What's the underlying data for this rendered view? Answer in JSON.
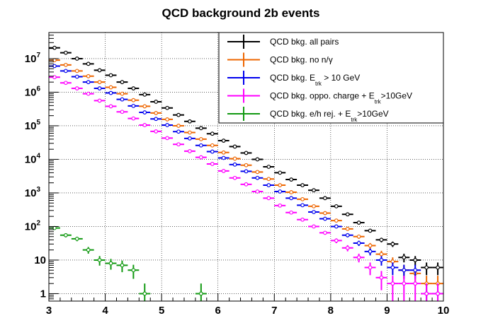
{
  "chart_data": {
    "type": "scatter",
    "title": "QCD background 2b events",
    "xlabel": "",
    "ylabel": "",
    "x_range": [
      3,
      10
    ],
    "y_range": [
      0.6,
      60000000
    ],
    "y_scale": "log",
    "grid": true,
    "legend_position": "top-right",
    "x_tick_labels": [
      "3",
      "4",
      "5",
      "6",
      "7",
      "8",
      "9",
      "10"
    ],
    "y_tick_labels": [
      {
        "value": 1,
        "base": "1",
        "exp": ""
      },
      {
        "value": 10,
        "base": "10",
        "exp": ""
      },
      {
        "value": 100,
        "base": "10",
        "exp": "2"
      },
      {
        "value": 1000,
        "base": "10",
        "exp": "3"
      },
      {
        "value": 10000,
        "base": "10",
        "exp": "4"
      },
      {
        "value": 100000,
        "base": "10",
        "exp": "5"
      },
      {
        "value": 1000000,
        "base": "10",
        "exp": "6"
      },
      {
        "value": 10000000,
        "base": "10",
        "exp": "7"
      }
    ],
    "bin_width": 0.2,
    "x": [
      3.1,
      3.3,
      3.5,
      3.7,
      3.9,
      4.1,
      4.3,
      4.5,
      4.7,
      4.9,
      5.1,
      5.3,
      5.5,
      5.7,
      5.9,
      6.1,
      6.3,
      6.5,
      6.7,
      6.9,
      7.1,
      7.3,
      7.5,
      7.7,
      7.9,
      8.1,
      8.3,
      8.5,
      8.7,
      8.9,
      9.1,
      9.3,
      9.5,
      9.7,
      9.9
    ],
    "series": [
      {
        "name": "QCD bkg. all pairs",
        "color": "#000000",
        "values": [
          21000000,
          15000000,
          10000000,
          7000000,
          4500000,
          3200000,
          2000000,
          1300000,
          850000,
          520000,
          340000,
          210000,
          135000,
          85000,
          58000,
          36000,
          24000,
          15500,
          10000,
          6000,
          4000,
          2500,
          1700,
          1200,
          700,
          400,
          230,
          130,
          75,
          40,
          30,
          12,
          10,
          6,
          6
        ]
      },
      {
        "name": "QCD bkg. no n/γ",
        "color": "#ee6600",
        "values": [
          9000000,
          6500000,
          4300000,
          3000000,
          2000000,
          1400000,
          900000,
          580000,
          380000,
          240000,
          155000,
          100000,
          63000,
          40000,
          26000,
          16000,
          10500,
          6700,
          4200,
          2600,
          1700,
          1050,
          650,
          400,
          250,
          150,
          85,
          50,
          27,
          15,
          9,
          5,
          4,
          2,
          2
        ]
      },
      {
        "name": "QCD bkg. E_trk > 10 GeV",
        "color": "#0000ee",
        "values": [
          6000000,
          4300000,
          2900000,
          2000000,
          1300000,
          950000,
          610000,
          390000,
          250000,
          160000,
          105000,
          67000,
          42000,
          26000,
          17000,
          11000,
          7000,
          4400,
          2800,
          1700,
          1100,
          700,
          430,
          270,
          170,
          100,
          55,
          32,
          18,
          10,
          6,
          5,
          5,
          1,
          1
        ]
      },
      {
        "name": "QCD bkg. oppo. charge + E_trk >10GeV",
        "color": "#ff00ff",
        "values": [
          2800000,
          1900000,
          1300000,
          900000,
          560000,
          380000,
          260000,
          165000,
          105000,
          68000,
          43000,
          28000,
          17500,
          11500,
          7300,
          4500,
          2800,
          1800,
          1100,
          700,
          420,
          260,
          160,
          100,
          65,
          38,
          23,
          12,
          6,
          3,
          2,
          2,
          2,
          1,
          1
        ]
      },
      {
        "name": "QCD bkg. e/h rej. + E_trk >10GeV",
        "color": "#119911",
        "values": [
          90,
          55,
          43,
          20,
          10,
          8,
          7,
          5,
          1,
          null,
          null,
          null,
          null,
          1,
          null,
          null,
          null,
          null,
          null,
          null,
          null,
          null,
          null,
          null,
          null,
          null,
          null,
          null,
          null,
          null,
          null,
          null,
          null,
          null,
          null
        ]
      }
    ]
  },
  "legend": [
    {
      "text": "QCD bkg. all pairs",
      "sub": "",
      "text2": ""
    },
    {
      "text": "QCD bkg. no n/γ",
      "sub": "",
      "text2": ""
    },
    {
      "text": "QCD bkg. E",
      "sub": "trk",
      "text2": " > 10 GeV"
    },
    {
      "text": "QCD bkg. oppo. charge + E",
      "sub": "trk",
      "text2": ">10GeV"
    },
    {
      "text": "QCD bkg. e/h rej. + E",
      "sub": "trk",
      "text2": ">10GeV"
    }
  ]
}
